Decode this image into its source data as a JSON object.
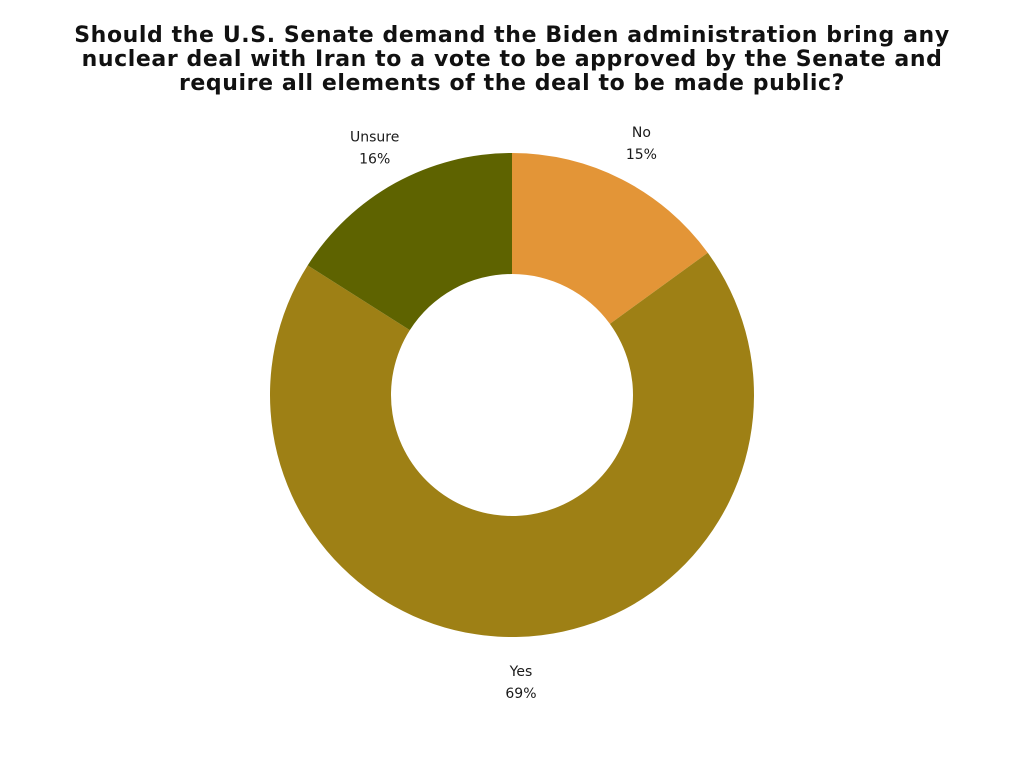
{
  "chart_data": {
    "type": "pie",
    "style": "donut",
    "title": "Should the U.S. Senate demand the Biden administration bring any nuclear deal with Iran to a vote to be approved by the Senate and require all elements of the deal to be made public?",
    "title_lines": [
      "Should the U.S. Senate demand the Biden administration bring any",
      "nuclear deal with Iran to a vote to be approved by the Senate and",
      "require all elements of the deal to be made public?"
    ],
    "slices": [
      {
        "label": "No",
        "value": 15,
        "value_label": "15%",
        "color": "#E39537"
      },
      {
        "label": "Yes",
        "value": 69,
        "value_label": "69%",
        "color": "#9E8015"
      },
      {
        "label": "Unsure",
        "value": 16,
        "value_label": "16%",
        "color": "#5E6300"
      }
    ],
    "unit": "%",
    "start_angle": "12 o'clock",
    "direction": "clockwise",
    "legend": "none"
  }
}
